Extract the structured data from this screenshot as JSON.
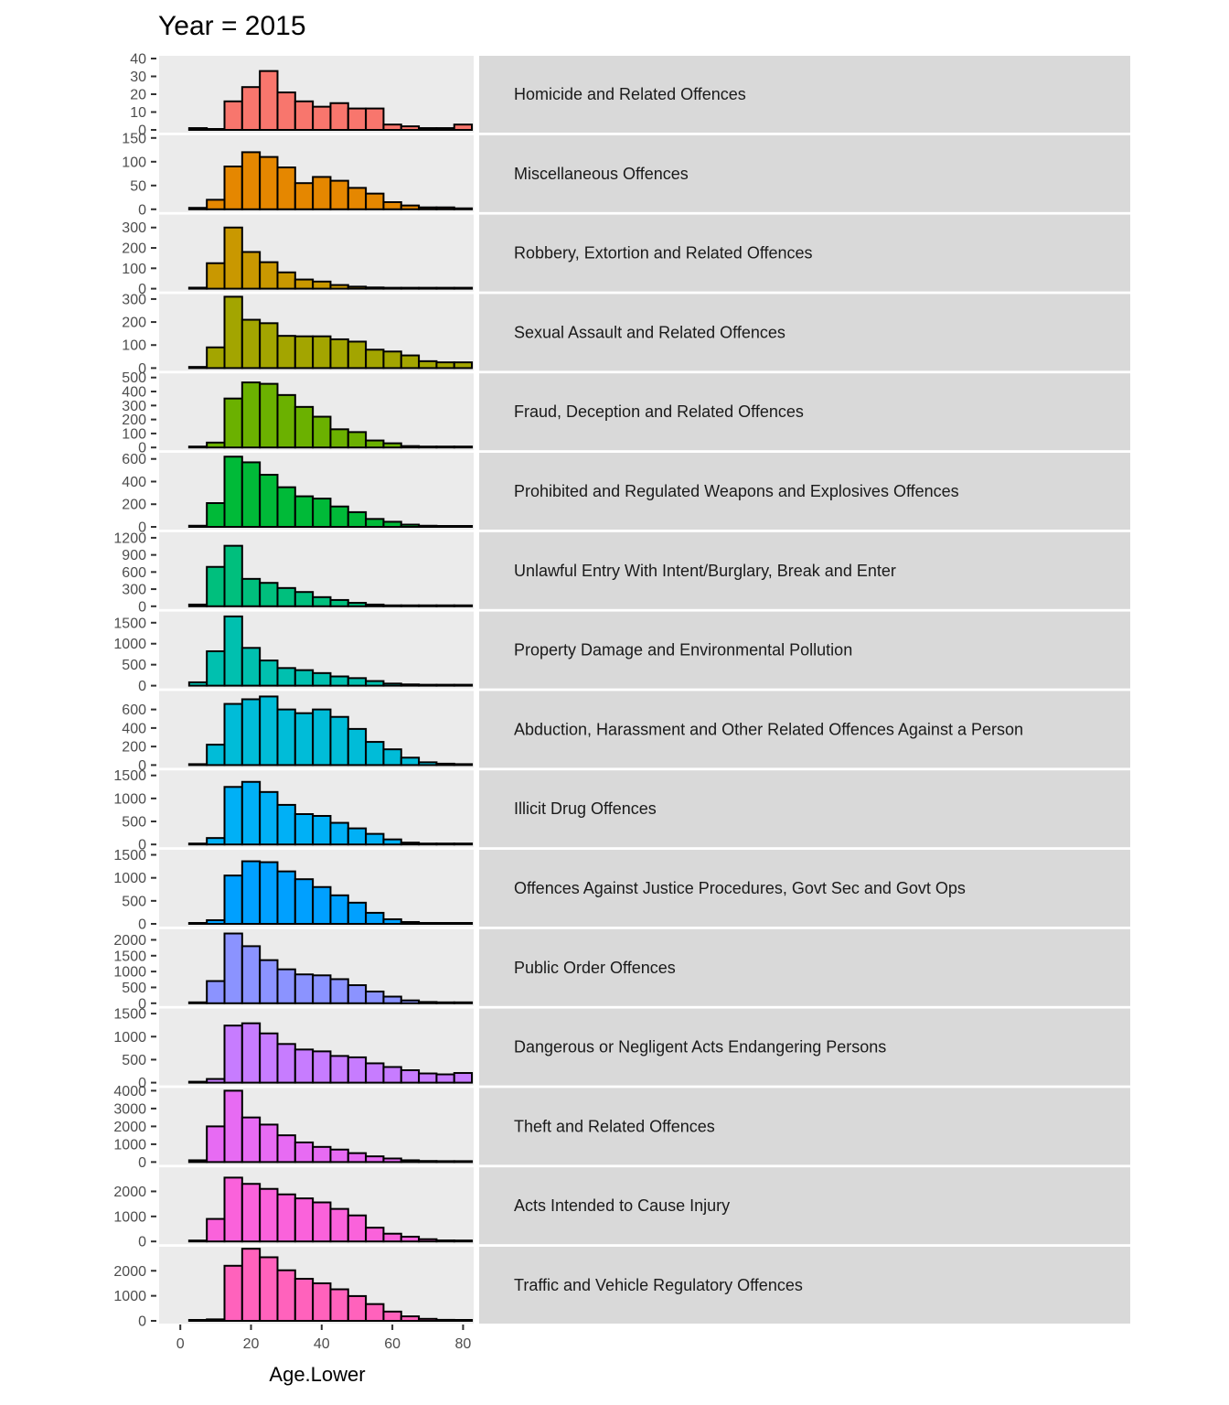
{
  "chart_data": {
    "type": "bar",
    "title": "Year = 2015",
    "xlabel": "Age.Lower",
    "ylabel": "",
    "xlim": [
      -6,
      83
    ],
    "x_ticks": [
      0,
      20,
      40,
      60,
      80
    ],
    "bin_width": 5,
    "x": [
      5,
      10,
      15,
      20,
      25,
      30,
      35,
      40,
      45,
      50,
      55,
      60,
      65,
      70,
      75,
      80
    ],
    "facets": [
      {
        "name": "Homicide and Related Offences",
        "color": "#F8766D",
        "ylim": [
          0,
          40
        ],
        "ticks": [
          0,
          10,
          20,
          30,
          40
        ],
        "values": [
          1,
          0,
          16,
          24,
          33,
          21,
          16,
          13,
          15,
          12,
          12,
          3,
          2,
          1,
          1,
          3
        ]
      },
      {
        "name": "Miscellaneous Offences",
        "color": "#E58700",
        "ylim": [
          0,
          150
        ],
        "ticks": [
          0,
          50,
          100,
          150
        ],
        "values": [
          3,
          20,
          90,
          120,
          110,
          88,
          55,
          68,
          60,
          45,
          33,
          15,
          8,
          4,
          4,
          2
        ]
      },
      {
        "name": "Robbery, Extortion and Related Offences",
        "color": "#C99800",
        "ylim": [
          0,
          350
        ],
        "ticks": [
          0,
          100,
          200,
          300
        ],
        "values": [
          5,
          125,
          300,
          180,
          130,
          80,
          45,
          35,
          18,
          10,
          6,
          4,
          0,
          0,
          3,
          0
        ]
      },
      {
        "name": "Sexual Assault and Related Offences",
        "color": "#A3A500",
        "ylim": [
          0,
          310
        ],
        "ticks": [
          0,
          100,
          200,
          300
        ],
        "values": [
          5,
          90,
          310,
          210,
          195,
          140,
          138,
          138,
          125,
          115,
          80,
          72,
          55,
          30,
          25,
          25
        ]
      },
      {
        "name": "Fraud, Deception and Related Offences",
        "color": "#6BB100",
        "ylim": [
          0,
          510
        ],
        "ticks": [
          0,
          100,
          200,
          300,
          400,
          500
        ],
        "values": [
          5,
          35,
          350,
          465,
          455,
          375,
          290,
          220,
          130,
          110,
          50,
          30,
          10,
          5,
          2,
          0
        ]
      },
      {
        "name": "Prohibited and Regulated Weapons and Explosives Offences",
        "color": "#00BA38",
        "ylim": [
          0,
          630
        ],
        "ticks": [
          0,
          200,
          400,
          600
        ],
        "values": [
          10,
          210,
          620,
          570,
          460,
          350,
          270,
          250,
          180,
          130,
          70,
          45,
          20,
          10,
          5,
          3
        ]
      },
      {
        "name": "Unlawful Entry With Intent/Burglary, Break and Enter",
        "color": "#00BF7D",
        "ylim": [
          0,
          1250
        ],
        "ticks": [
          0,
          300,
          600,
          900,
          1200
        ],
        "values": [
          30,
          690,
          1060,
          480,
          410,
          320,
          250,
          160,
          110,
          60,
          30,
          10,
          5,
          3,
          2,
          1
        ]
      },
      {
        "name": "Property Damage and Environmental Pollution",
        "color": "#00C0AF",
        "ylim": [
          0,
          1700
        ],
        "ticks": [
          0,
          500,
          1000,
          1500
        ],
        "values": [
          80,
          820,
          1650,
          900,
          600,
          420,
          370,
          300,
          220,
          180,
          110,
          50,
          30,
          20,
          10,
          10
        ]
      },
      {
        "name": "Abduction, Harassment and Other Related Offences Against a Person",
        "color": "#00BCD8",
        "ylim": [
          0,
          770
        ],
        "ticks": [
          0,
          200,
          400,
          600
        ],
        "values": [
          5,
          220,
          660,
          710,
          740,
          600,
          560,
          600,
          520,
          390,
          250,
          170,
          80,
          30,
          15,
          10
        ]
      },
      {
        "name": "Illicit Drug Offences",
        "color": "#00B0F6",
        "ylim": [
          0,
          1550
        ],
        "ticks": [
          0,
          500,
          1000,
          1500
        ],
        "values": [
          3,
          140,
          1250,
          1360,
          1140,
          860,
          660,
          620,
          470,
          350,
          230,
          110,
          40,
          15,
          10,
          5
        ]
      },
      {
        "name": "Offences Against Justice Procedures, Govt Sec and Govt Ops",
        "color": "#00A0FF",
        "ylim": [
          0,
          1550
        ],
        "ticks": [
          0,
          500,
          1000,
          1500
        ],
        "values": [
          5,
          80,
          1050,
          1360,
          1340,
          1140,
          970,
          800,
          620,
          460,
          240,
          100,
          40,
          20,
          10,
          5
        ]
      },
      {
        "name": "Public Order Offences",
        "color": "#8B93FF",
        "ylim": [
          0,
          2250
        ],
        "ticks": [
          0,
          500,
          1000,
          1500,
          2000
        ],
        "values": [
          5,
          700,
          2200,
          1800,
          1360,
          1070,
          910,
          880,
          760,
          570,
          370,
          210,
          90,
          40,
          20,
          10
        ]
      },
      {
        "name": "Dangerous or Negligent Acts Endangering Persons",
        "color": "#C77CFF",
        "ylim": [
          0,
          1550
        ],
        "ticks": [
          0,
          500,
          1000,
          1500
        ],
        "values": [
          5,
          80,
          1240,
          1290,
          1070,
          840,
          720,
          680,
          580,
          550,
          420,
          340,
          270,
          200,
          180,
          210
        ]
      },
      {
        "name": "Theft and Related Offences",
        "color": "#E76BF3",
        "ylim": [
          0,
          4000
        ],
        "ticks": [
          0,
          1000,
          2000,
          3000,
          4000
        ],
        "values": [
          100,
          2000,
          4000,
          2500,
          2100,
          1500,
          1100,
          850,
          700,
          500,
          320,
          200,
          100,
          60,
          30,
          20
        ]
      },
      {
        "name": "Acts Intended to Cause Injury",
        "color": "#FA62DB",
        "ylim": [
          0,
          2850
        ],
        "ticks": [
          0,
          1000,
          2000
        ],
        "values": [
          20,
          900,
          2550,
          2300,
          2100,
          1880,
          1720,
          1560,
          1300,
          1040,
          550,
          310,
          190,
          90,
          40,
          20
        ]
      },
      {
        "name": "Traffic and Vehicle Regulatory Offences",
        "color": "#FF62BC",
        "ylim": [
          0,
          2850
        ],
        "ticks": [
          0,
          1000,
          2000
        ],
        "values": [
          0,
          60,
          2200,
          2880,
          2540,
          2020,
          1680,
          1500,
          1260,
          990,
          670,
          370,
          180,
          80,
          40,
          20
        ]
      }
    ]
  }
}
